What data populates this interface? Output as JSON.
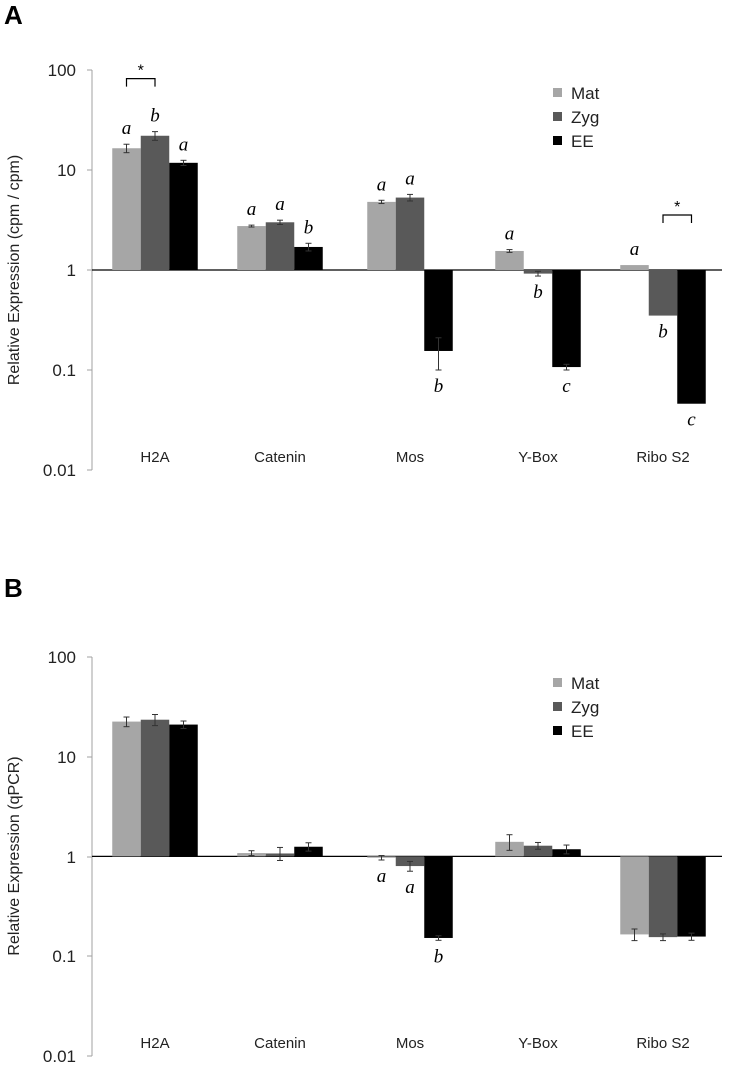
{
  "panels": [
    {
      "label": "A",
      "ylabel": "Relative Expression (cpm / cpm)",
      "y_ticks": [
        "100",
        "10",
        "1",
        "0.1",
        "0.01"
      ]
    },
    {
      "label": "B",
      "ylabel": "Relative Expression (qPCR)",
      "y_ticks": [
        "100",
        "10",
        "1",
        "0.1",
        "0.01"
      ]
    }
  ],
  "legend": [
    {
      "name": "Mat",
      "color": "#a6a6a6"
    },
    {
      "name": "Zyg",
      "color": "#595959"
    },
    {
      "name": "EE",
      "color": "#000000"
    }
  ],
  "chart_data": [
    {
      "type": "bar",
      "panel": "A",
      "ylabel": "Relative Expression (cpm / cpm)",
      "y_scale": "log",
      "ylim": [
        0.01,
        100
      ],
      "baseline": 1,
      "legend_position": "top-right",
      "categories": [
        "H2A",
        "Catenin",
        "Mos",
        "Y-Box",
        "Ribo S2"
      ],
      "series": [
        {
          "name": "Mat",
          "color": "#a6a6a6",
          "values": [
            16.5,
            2.75,
            4.8,
            1.55,
            1.12
          ],
          "errors": [
            1.6,
            0.06,
            0.18,
            0.05,
            0
          ]
        },
        {
          "name": "Zyg",
          "color": "#595959",
          "values": [
            22,
            3.0,
            5.3,
            0.92,
            0.35
          ],
          "errors": [
            2.2,
            0.15,
            0.4,
            0.05,
            0
          ]
        },
        {
          "name": "EE",
          "color": "#000000",
          "values": [
            11.8,
            1.7,
            0.155,
            0.107,
            0.046
          ],
          "errors": [
            0.7,
            0.15,
            0.055,
            0.007,
            0
          ]
        }
      ],
      "letters": [
        [
          "a",
          "b",
          "a"
        ],
        [
          "a",
          "a",
          "b"
        ],
        [
          "a",
          "a",
          "b"
        ],
        [
          "a",
          "b",
          "c"
        ],
        [
          "a",
          "b",
          "c"
        ]
      ],
      "significance": [
        {
          "category": "H2A",
          "between": [
            "Mat",
            "Zyg"
          ],
          "label": "*"
        },
        {
          "category": "Ribo S2",
          "between": [
            "Zyg",
            "EE"
          ],
          "label": "*"
        }
      ]
    },
    {
      "type": "bar",
      "panel": "B",
      "ylabel": "Relative Expression (qPCR)",
      "y_scale": "log",
      "ylim": [
        0.01,
        100
      ],
      "baseline": 1,
      "legend_position": "top-right",
      "categories": [
        "H2A",
        "Catenin",
        "Mos",
        "Y-Box",
        "Ribo S2"
      ],
      "series": [
        {
          "name": "Mat",
          "color": "#a6a6a6",
          "values": [
            22.5,
            1.08,
            0.97,
            1.4,
            0.165
          ],
          "errors": [
            2.5,
            0.06,
            0.05,
            0.25,
            0.022
          ]
        },
        {
          "name": "Zyg",
          "color": "#595959",
          "values": [
            23.5,
            1.07,
            0.8,
            1.28,
            0.155
          ],
          "errors": [
            3.0,
            0.16,
            0.09,
            0.1,
            0.012
          ]
        },
        {
          "name": "EE",
          "color": "#000000",
          "values": [
            21,
            1.25,
            0.152,
            1.18,
            0.157
          ],
          "errors": [
            1.8,
            0.12,
            0.008,
            0.12,
            0.013
          ]
        }
      ],
      "letters": [
        [
          "",
          "",
          ""
        ],
        [
          "",
          "",
          ""
        ],
        [
          "a",
          "a",
          "b"
        ],
        [
          "",
          "",
          ""
        ],
        [
          "",
          "",
          ""
        ]
      ],
      "significance": []
    }
  ]
}
